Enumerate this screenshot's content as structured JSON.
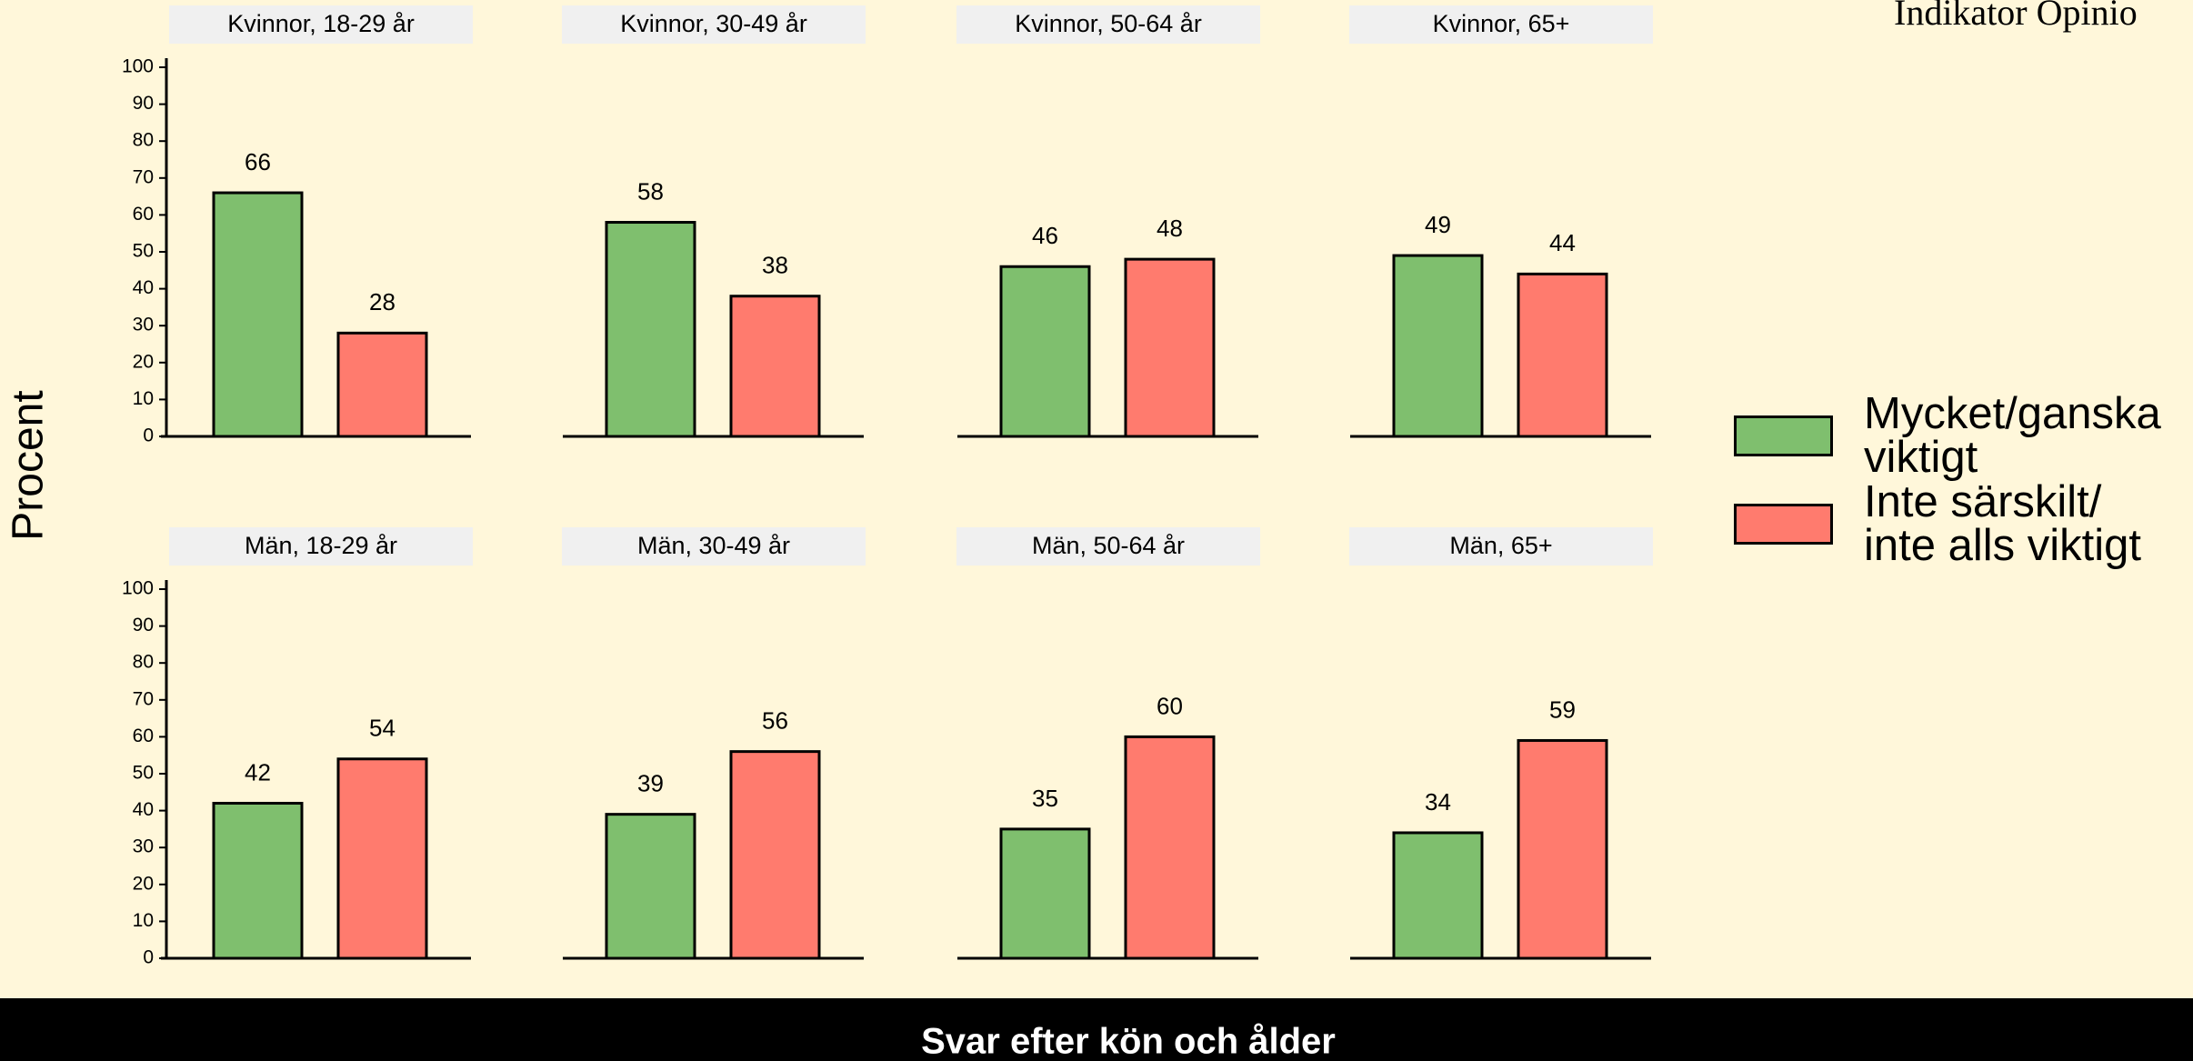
{
  "chart_data": {
    "type": "bar",
    "brand": "Indikator Opinio",
    "ylabel": "Procent",
    "xlabel": "Svar efter kön och ålder",
    "ylim": [
      0,
      100
    ],
    "yticks": [
      0,
      10,
      20,
      30,
      40,
      50,
      60,
      70,
      80,
      90,
      100
    ],
    "series": [
      {
        "name": "Mycket/ganska viktigt",
        "color": "#7fbf6e"
      },
      {
        "name": "Inte särskilt/ inte alls viktigt",
        "color": "#ff7b6e"
      }
    ],
    "panels": [
      {
        "title": "Kvinnor, 18-29 år",
        "values": [
          66,
          28
        ]
      },
      {
        "title": "Kvinnor, 30-49 år",
        "values": [
          58,
          38
        ]
      },
      {
        "title": "Kvinnor, 50-64 år",
        "values": [
          46,
          48
        ]
      },
      {
        "title": "Kvinnor, 65+",
        "values": [
          49,
          44
        ]
      },
      {
        "title": "Män, 18-29 år",
        "values": [
          42,
          54
        ]
      },
      {
        "title": "Män, 30-49 år",
        "values": [
          39,
          56
        ]
      },
      {
        "title": "Män, 50-64 år",
        "values": [
          35,
          60
        ]
      },
      {
        "title": "Män, 65+",
        "values": [
          34,
          59
        ]
      }
    ]
  }
}
